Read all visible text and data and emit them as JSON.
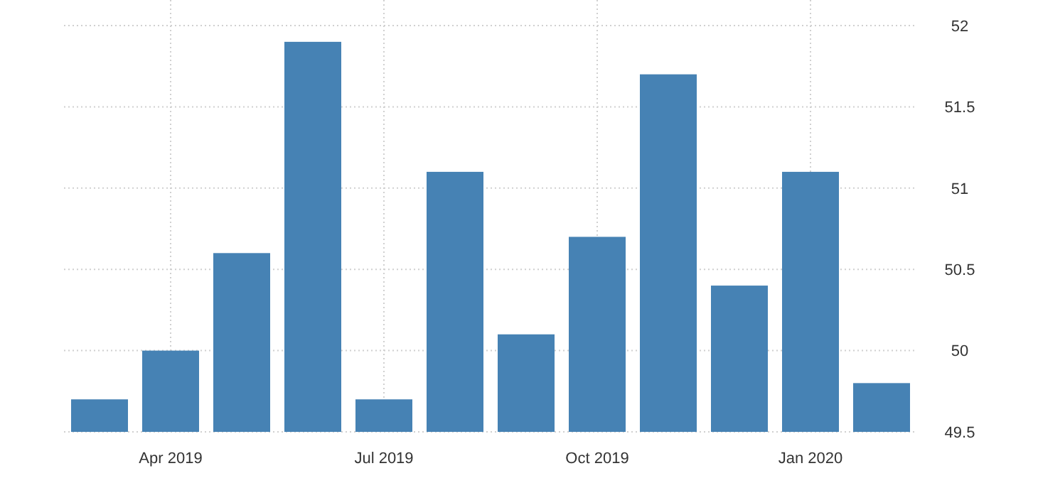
{
  "chart_data": {
    "type": "bar",
    "categories": [
      null,
      "Apr 2019",
      null,
      null,
      "Jul 2019",
      null,
      null,
      "Oct 2019",
      null,
      null,
      "Jan 2020",
      null
    ],
    "values": [
      49.7,
      50.0,
      50.6,
      51.9,
      49.7,
      51.1,
      50.1,
      50.7,
      51.7,
      50.4,
      51.1,
      49.8
    ],
    "color": "#4682b4",
    "ylim": [
      49.5,
      52
    ],
    "yticks": [
      49.5,
      50,
      50.5,
      51,
      51.5,
      52
    ],
    "grid": true
  }
}
